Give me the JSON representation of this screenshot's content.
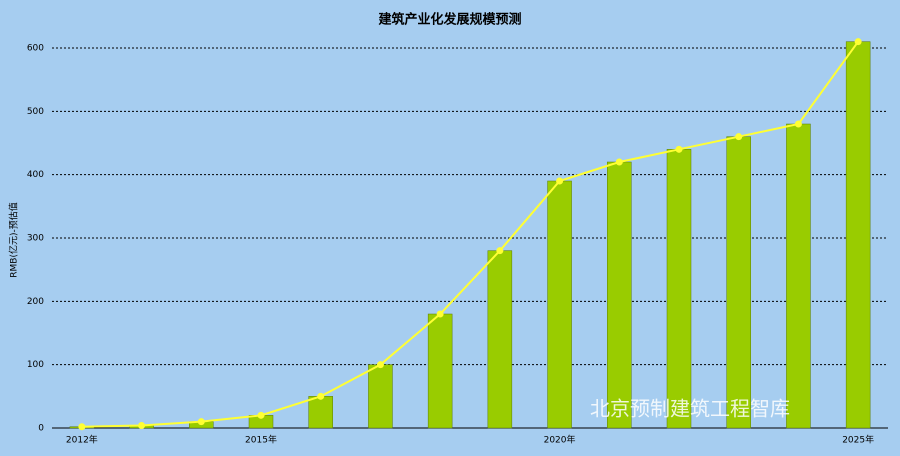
{
  "chart_data": {
    "type": "bar",
    "title": "建筑产业化发展规模预测",
    "y_label": "RMB(亿元)-预估值",
    "categories": [
      "2012年",
      null,
      null,
      "2015年",
      null,
      null,
      null,
      null,
      "2020年",
      null,
      null,
      null,
      null,
      "2025年"
    ],
    "values": [
      2,
      4,
      10,
      20,
      50,
      100,
      180,
      280,
      390,
      420,
      440,
      460,
      480,
      610
    ],
    "color": "#99cc00",
    "line_color": "#ffff33",
    "ylim": [
      0,
      600
    ],
    "yticks": [
      0,
      100,
      200,
      300,
      400,
      500,
      600
    ],
    "grid": true,
    "watermark": "北京预制建筑工程智库"
  }
}
